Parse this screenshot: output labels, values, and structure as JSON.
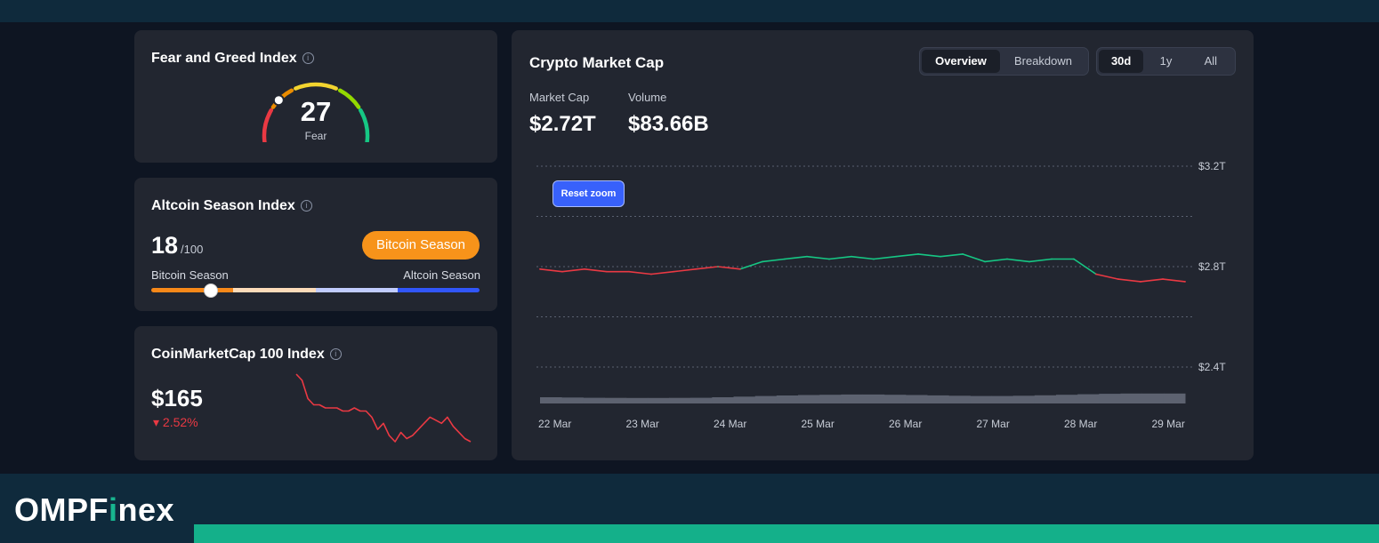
{
  "brand": {
    "prefix": "OMPF",
    "highlight": "i",
    "suffix": "nex"
  },
  "fear_greed": {
    "title": "Fear and Greed Index",
    "info_icon": "info-icon",
    "value": "27",
    "label": "Fear",
    "level": 27,
    "colors": [
      "#ea3943",
      "#ea8c00",
      "#f3d42f",
      "#93d900",
      "#16c784"
    ]
  },
  "altcoin": {
    "title": "Altcoin Season Index",
    "info_icon": "info-icon",
    "value": "18",
    "max": "/100",
    "level": 18,
    "badge": "Bitcoin Season",
    "scale_left": "Bitcoin Season",
    "scale_right": "Altcoin Season",
    "scale_colors": [
      "#f68819",
      "#fcdbb9",
      "#c1ccfd",
      "#3156fa"
    ]
  },
  "cmc100": {
    "title": "CoinMarketCap 100 Index",
    "info_icon": "info-icon",
    "value": "$165",
    "change": "2.52%",
    "change_icon": "caret-down-icon",
    "spark_color": "#ea3943",
    "spark": [
      100,
      98,
      92,
      90,
      90,
      89,
      89,
      89,
      88,
      88,
      89,
      88,
      88,
      86,
      82,
      84,
      80,
      78,
      81,
      79,
      80,
      82,
      84,
      86,
      85,
      84,
      86,
      83,
      81,
      79,
      78
    ]
  },
  "market_cap": {
    "title": "Crypto Market Cap",
    "view_tabs": [
      {
        "label": "Overview",
        "active": true
      },
      {
        "label": "Breakdown",
        "active": false
      }
    ],
    "range_tabs": [
      {
        "label": "30d",
        "active": true
      },
      {
        "label": "1y",
        "active": false
      },
      {
        "label": "All",
        "active": false
      }
    ],
    "market_cap_label": "Market Cap",
    "market_cap_value": "$2.72T",
    "volume_label": "Volume",
    "volume_value": "$83.66B",
    "reset_zoom": "Reset zoom"
  },
  "chart_data": {
    "type": "line",
    "ylabel": "",
    "xlabel": "",
    "y_tick_labels": [
      "$3.2T",
      "$2.8T",
      "$2.4T"
    ],
    "y_ticks": [
      3.2,
      2.8,
      2.4
    ],
    "ylim": [
      2.4,
      3.2
    ],
    "x_tick_labels": [
      "22 Mar",
      "23 Mar",
      "24 Mar",
      "25 Mar",
      "26 Mar",
      "27 Mar",
      "28 Mar",
      "29 Mar"
    ],
    "baseline": 2.8,
    "colors": {
      "above": "#16c784",
      "below": "#ea3943",
      "volume": "#5d6270"
    },
    "x": [
      0,
      0.25,
      0.5,
      0.75,
      1,
      1.25,
      1.5,
      1.75,
      2,
      2.25,
      2.5,
      2.75,
      3,
      3.25,
      3.5,
      3.75,
      4,
      4.25,
      4.5,
      4.75,
      5,
      5.25,
      5.5,
      5.75,
      6,
      6.25,
      6.5,
      6.75,
      7,
      7.25
    ],
    "values": [
      2.79,
      2.78,
      2.79,
      2.78,
      2.78,
      2.77,
      2.78,
      2.79,
      2.8,
      2.79,
      2.82,
      2.83,
      2.84,
      2.83,
      2.84,
      2.83,
      2.84,
      2.85,
      2.84,
      2.85,
      2.82,
      2.83,
      2.82,
      2.83,
      2.83,
      2.77,
      2.75,
      2.74,
      2.75,
      2.74
    ],
    "volume": [
      0.5,
      0.48,
      0.46,
      0.45,
      0.44,
      0.44,
      0.45,
      0.46,
      0.5,
      0.55,
      0.6,
      0.64,
      0.68,
      0.7,
      0.72,
      0.72,
      0.7,
      0.68,
      0.65,
      0.62,
      0.6,
      0.6,
      0.62,
      0.66,
      0.7,
      0.74,
      0.78,
      0.8,
      0.8,
      0.8
    ]
  }
}
